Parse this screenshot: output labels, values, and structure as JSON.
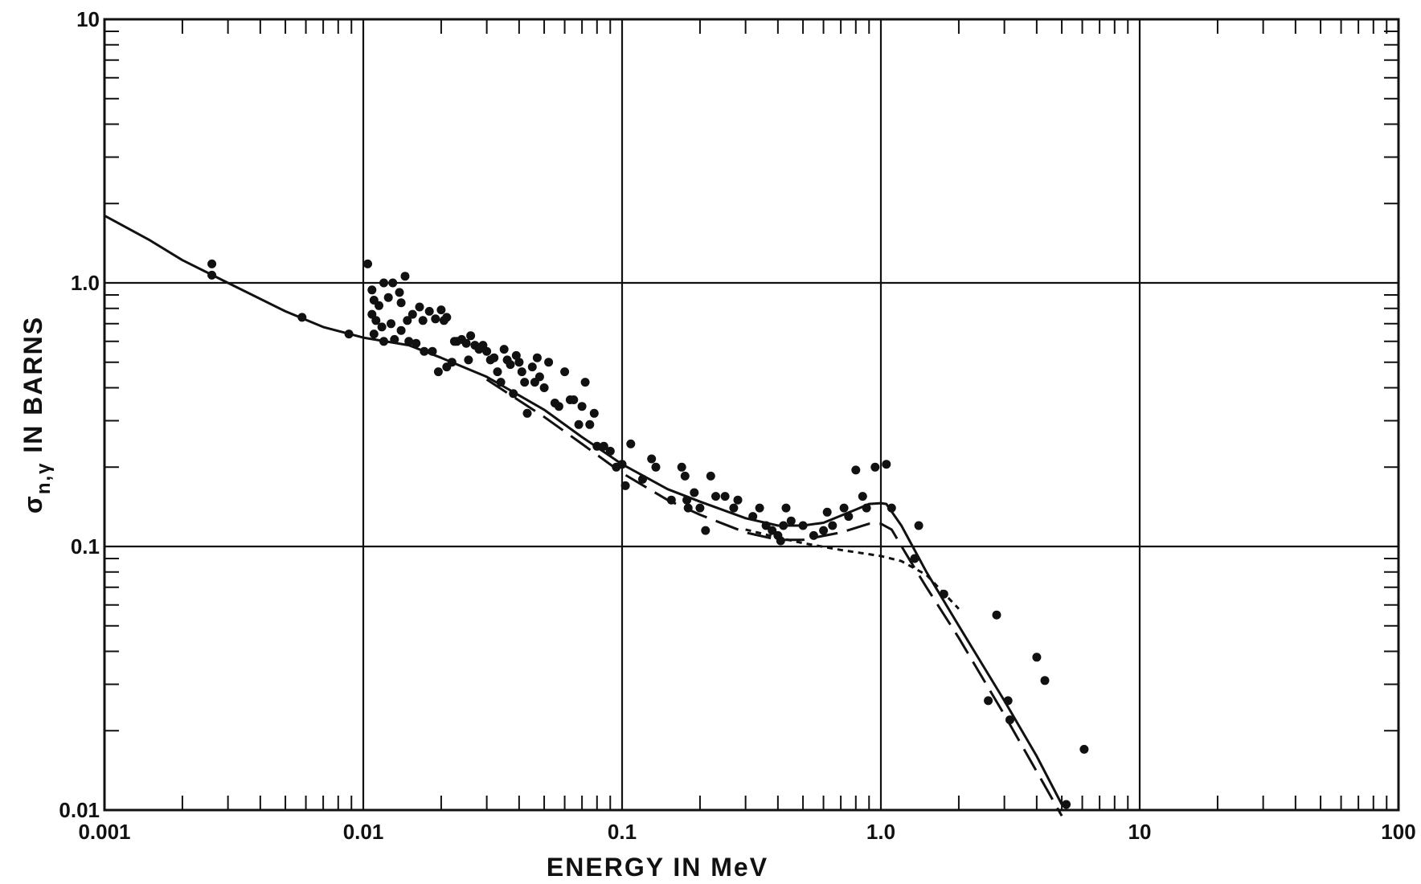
{
  "chart_data": {
    "type": "scatter",
    "title": "",
    "xlabel": "ENERGY IN MeV",
    "ylabel_parts": {
      "symbol": "σ",
      "subscript": "n,γ",
      "rest": "IN BARNS"
    },
    "x_scale": "log",
    "y_scale": "log",
    "xlim": [
      0.001,
      100
    ],
    "ylim": [
      0.01,
      10
    ],
    "x_tick_labels": [
      {
        "value": 0.001,
        "label": "0.001"
      },
      {
        "value": 0.01,
        "label": "0.01"
      },
      {
        "value": 0.1,
        "label": "0.1"
      },
      {
        "value": 1,
        "label": "1.0"
      },
      {
        "value": 10,
        "label": "10"
      },
      {
        "value": 100,
        "label": "100"
      }
    ],
    "y_tick_labels": [
      {
        "value": 0.01,
        "label": "0.01"
      },
      {
        "value": 0.1,
        "label": "0.1"
      },
      {
        "value": 1,
        "label": "1.0"
      },
      {
        "value": 10,
        "label": "10"
      }
    ],
    "grid": "major decades",
    "colors": {
      "ink": "#111111",
      "background": "#ffffff"
    },
    "series": [
      {
        "style": "solid",
        "points": [
          [
            0.001,
            1.8
          ],
          [
            0.0015,
            1.45
          ],
          [
            0.002,
            1.22
          ],
          [
            0.003,
            1.0
          ],
          [
            0.005,
            0.78
          ],
          [
            0.007,
            0.68
          ],
          [
            0.01,
            0.62
          ],
          [
            0.015,
            0.58
          ],
          [
            0.02,
            0.52
          ],
          [
            0.03,
            0.44
          ],
          [
            0.05,
            0.33
          ],
          [
            0.07,
            0.26
          ],
          [
            0.1,
            0.205
          ],
          [
            0.15,
            0.165
          ],
          [
            0.2,
            0.148
          ],
          [
            0.3,
            0.128
          ],
          [
            0.4,
            0.12
          ],
          [
            0.5,
            0.12
          ],
          [
            0.6,
            0.123
          ],
          [
            0.8,
            0.138
          ],
          [
            0.9,
            0.145
          ],
          [
            1.0,
            0.146
          ],
          [
            1.05,
            0.145
          ],
          [
            1.2,
            0.12
          ],
          [
            1.5,
            0.08
          ],
          [
            2.0,
            0.05
          ],
          [
            3.0,
            0.026
          ],
          [
            4.0,
            0.016
          ],
          [
            5.0,
            0.0105
          ]
        ]
      },
      {
        "style": "long-dash",
        "points": [
          [
            0.03,
            0.43
          ],
          [
            0.05,
            0.31
          ],
          [
            0.07,
            0.245
          ],
          [
            0.1,
            0.19
          ],
          [
            0.15,
            0.15
          ],
          [
            0.2,
            0.132
          ],
          [
            0.3,
            0.113
          ],
          [
            0.4,
            0.106
          ],
          [
            0.5,
            0.106
          ],
          [
            0.7,
            0.113
          ],
          [
            0.9,
            0.122
          ],
          [
            1.0,
            0.122
          ],
          [
            1.1,
            0.116
          ],
          [
            1.3,
            0.088
          ],
          [
            1.5,
            0.07
          ],
          [
            2.0,
            0.045
          ],
          [
            3.0,
            0.023
          ],
          [
            4.0,
            0.014
          ],
          [
            5.0,
            0.0095
          ]
        ]
      },
      {
        "style": "short-dash",
        "points": [
          [
            0.3,
            0.116
          ],
          [
            0.4,
            0.108
          ],
          [
            0.5,
            0.103
          ],
          [
            0.7,
            0.097
          ],
          [
            1.0,
            0.092
          ],
          [
            1.2,
            0.088
          ],
          [
            1.5,
            0.078
          ],
          [
            2.0,
            0.058
          ]
        ]
      }
    ],
    "points": [
      [
        0.0026,
        1.18
      ],
      [
        0.0026,
        1.07
      ],
      [
        0.0058,
        0.74
      ],
      [
        0.0088,
        0.64
      ],
      [
        0.0104,
        1.18
      ],
      [
        0.0108,
        0.94
      ],
      [
        0.011,
        0.86
      ],
      [
        0.0108,
        0.76
      ],
      [
        0.0112,
        0.72
      ],
      [
        0.011,
        0.64
      ],
      [
        0.0115,
        0.82
      ],
      [
        0.012,
        1.0
      ],
      [
        0.0118,
        0.68
      ],
      [
        0.012,
        0.6
      ],
      [
        0.0125,
        0.88
      ],
      [
        0.0128,
        0.7
      ],
      [
        0.013,
        1.0
      ],
      [
        0.0132,
        0.61
      ],
      [
        0.0138,
        0.92
      ],
      [
        0.014,
        0.84
      ],
      [
        0.014,
        0.66
      ],
      [
        0.0145,
        1.06
      ],
      [
        0.0148,
        0.72
      ],
      [
        0.015,
        0.6
      ],
      [
        0.0155,
        0.76
      ],
      [
        0.016,
        0.59
      ],
      [
        0.0165,
        0.81
      ],
      [
        0.017,
        0.72
      ],
      [
        0.0172,
        0.55
      ],
      [
        0.018,
        0.78
      ],
      [
        0.0185,
        0.55
      ],
      [
        0.019,
        0.73
      ],
      [
        0.0195,
        0.46
      ],
      [
        0.02,
        0.79
      ],
      [
        0.0205,
        0.72
      ],
      [
        0.021,
        0.74
      ],
      [
        0.021,
        0.48
      ],
      [
        0.022,
        0.5
      ],
      [
        0.0225,
        0.6
      ],
      [
        0.023,
        0.6
      ],
      [
        0.024,
        0.61
      ],
      [
        0.025,
        0.59
      ],
      [
        0.0255,
        0.51
      ],
      [
        0.026,
        0.63
      ],
      [
        0.027,
        0.58
      ],
      [
        0.028,
        0.56
      ],
      [
        0.029,
        0.58
      ],
      [
        0.03,
        0.55
      ],
      [
        0.031,
        0.51
      ],
      [
        0.032,
        0.52
      ],
      [
        0.033,
        0.46
      ],
      [
        0.034,
        0.42
      ],
      [
        0.035,
        0.56
      ],
      [
        0.036,
        0.51
      ],
      [
        0.037,
        0.49
      ],
      [
        0.038,
        0.38
      ],
      [
        0.039,
        0.53
      ],
      [
        0.04,
        0.5
      ],
      [
        0.041,
        0.46
      ],
      [
        0.042,
        0.42
      ],
      [
        0.043,
        0.32
      ],
      [
        0.045,
        0.48
      ],
      [
        0.046,
        0.42
      ],
      [
        0.047,
        0.52
      ],
      [
        0.048,
        0.44
      ],
      [
        0.05,
        0.4
      ],
      [
        0.052,
        0.5
      ],
      [
        0.055,
        0.35
      ],
      [
        0.057,
        0.34
      ],
      [
        0.06,
        0.46
      ],
      [
        0.063,
        0.36
      ],
      [
        0.065,
        0.36
      ],
      [
        0.068,
        0.29
      ],
      [
        0.07,
        0.34
      ],
      [
        0.072,
        0.42
      ],
      [
        0.075,
        0.29
      ],
      [
        0.078,
        0.32
      ],
      [
        0.08,
        0.24
      ],
      [
        0.085,
        0.24
      ],
      [
        0.09,
        0.23
      ],
      [
        0.095,
        0.2
      ],
      [
        0.1,
        0.205
      ],
      [
        0.103,
        0.17
      ],
      [
        0.108,
        0.245
      ],
      [
        0.12,
        0.18
      ],
      [
        0.13,
        0.215
      ],
      [
        0.135,
        0.2
      ],
      [
        0.155,
        0.15
      ],
      [
        0.17,
        0.2
      ],
      [
        0.175,
        0.185
      ],
      [
        0.178,
        0.15
      ],
      [
        0.18,
        0.14
      ],
      [
        0.19,
        0.16
      ],
      [
        0.2,
        0.14
      ],
      [
        0.21,
        0.115
      ],
      [
        0.22,
        0.185
      ],
      [
        0.23,
        0.155
      ],
      [
        0.25,
        0.155
      ],
      [
        0.27,
        0.14
      ],
      [
        0.28,
        0.15
      ],
      [
        0.32,
        0.13
      ],
      [
        0.34,
        0.14
      ],
      [
        0.36,
        0.12
      ],
      [
        0.38,
        0.115
      ],
      [
        0.4,
        0.11
      ],
      [
        0.41,
        0.105
      ],
      [
        0.42,
        0.12
      ],
      [
        0.43,
        0.14
      ],
      [
        0.45,
        0.125
      ],
      [
        0.5,
        0.12
      ],
      [
        0.55,
        0.11
      ],
      [
        0.6,
        0.115
      ],
      [
        0.62,
        0.135
      ],
      [
        0.65,
        0.12
      ],
      [
        0.72,
        0.14
      ],
      [
        0.75,
        0.13
      ],
      [
        0.8,
        0.195
      ],
      [
        0.85,
        0.155
      ],
      [
        0.88,
        0.14
      ],
      [
        0.95,
        0.2
      ],
      [
        1.05,
        0.205
      ],
      [
        1.1,
        0.14
      ],
      [
        1.35,
        0.09
      ],
      [
        1.4,
        0.12
      ],
      [
        1.75,
        0.066
      ],
      [
        2.6,
        0.026
      ],
      [
        2.8,
        0.055
      ],
      [
        3.1,
        0.026
      ],
      [
        3.15,
        0.022
      ],
      [
        4.0,
        0.038
      ],
      [
        4.3,
        0.031
      ],
      [
        5.2,
        0.0105
      ],
      [
        6.1,
        0.017
      ]
    ]
  }
}
